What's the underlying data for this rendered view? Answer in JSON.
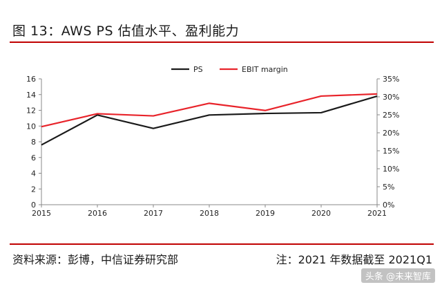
{
  "header": {
    "title": "图 13：AWS PS 估值水平、盈利能力"
  },
  "footer": {
    "source": "资料来源：彭博，中信证券研究部",
    "note": "注：2021 年数据截至 2021Q1"
  },
  "watermark": {
    "text": "头条 @未来智库"
  },
  "colors": {
    "ps": "#1a1a1a",
    "ebit": "#e8232a",
    "accent": "#c00000"
  },
  "chart_data": {
    "type": "line",
    "title": "",
    "x": [
      "2015",
      "2016",
      "2017",
      "2018",
      "2019",
      "2020",
      "2021"
    ],
    "series": [
      {
        "name": "PS",
        "axis": "left",
        "values": [
          7.6,
          11.4,
          9.7,
          11.4,
          11.6,
          11.7,
          13.8
        ]
      },
      {
        "name": "EBIT margin",
        "axis": "right",
        "values": [
          21.7,
          25.3,
          24.7,
          28.2,
          26.2,
          30.2,
          30.8
        ]
      }
    ],
    "left_axis": {
      "min": 0,
      "max": 16,
      "ticks": [
        "0",
        "2",
        "4",
        "6",
        "8",
        "10",
        "12",
        "14",
        "16"
      ]
    },
    "right_axis": {
      "min": 0,
      "max": 35,
      "ticks": [
        "0%",
        "5%",
        "10%",
        "15%",
        "20%",
        "25%",
        "30%",
        "35%"
      ]
    },
    "legend": {
      "position": "top-center"
    }
  }
}
